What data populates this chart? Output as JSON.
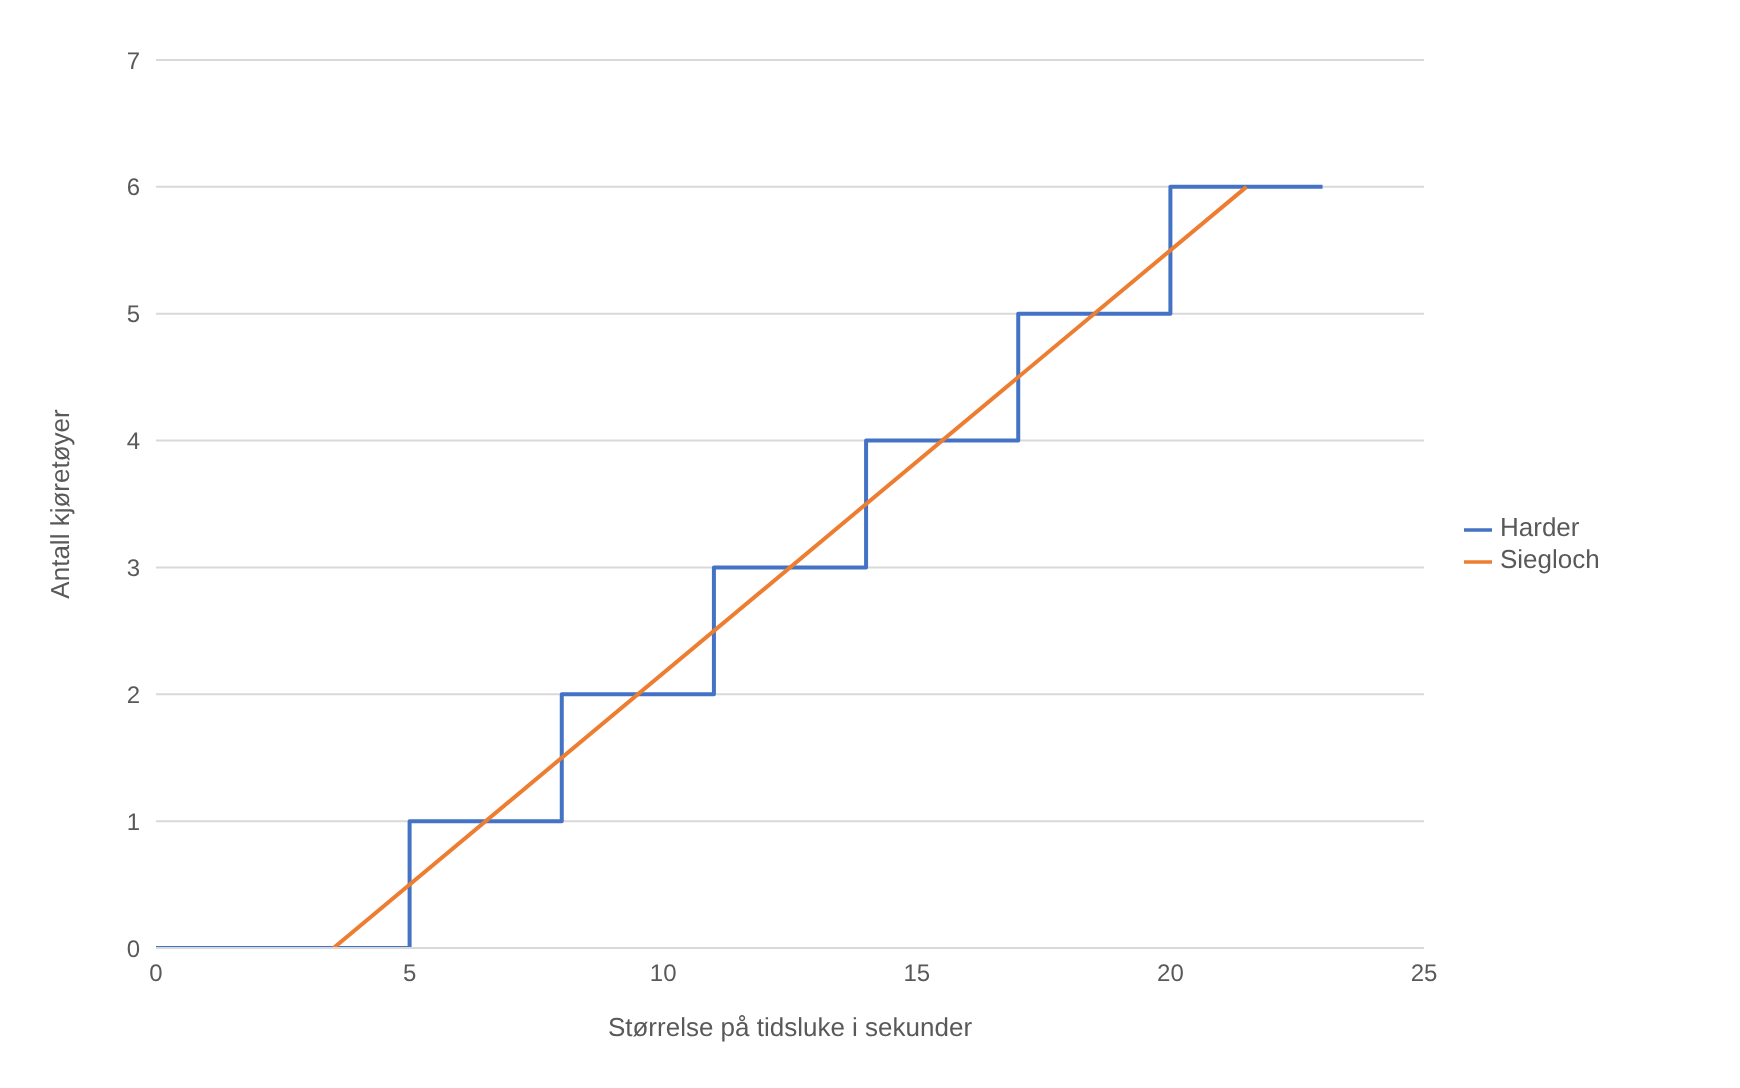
{
  "chart_data": {
    "type": "line",
    "xlabel": "Størrelse på tidsluke i sekunder",
    "ylabel": "Antall kjøretøyer",
    "xlim": [
      0,
      25
    ],
    "xticks": [
      0,
      5,
      10,
      15,
      20,
      25
    ],
    "ylim": [
      0,
      7
    ],
    "yticks": [
      0,
      1,
      2,
      3,
      4,
      5,
      6,
      7
    ],
    "grid": "y",
    "legend": "right",
    "marker": "none",
    "line_style": "solid",
    "series": [
      {
        "name": "Harder",
        "type": "step",
        "color": "#4472c4",
        "x": [
          0,
          5,
          8,
          11,
          14,
          17,
          20,
          23
        ],
        "values": [
          0,
          1,
          2,
          3,
          4,
          5,
          6,
          6
        ]
      },
      {
        "name": "Siegloch",
        "color": "#ed7d31",
        "x": [
          3.5,
          21.5
        ],
        "values": [
          0,
          6
        ]
      }
    ]
  }
}
